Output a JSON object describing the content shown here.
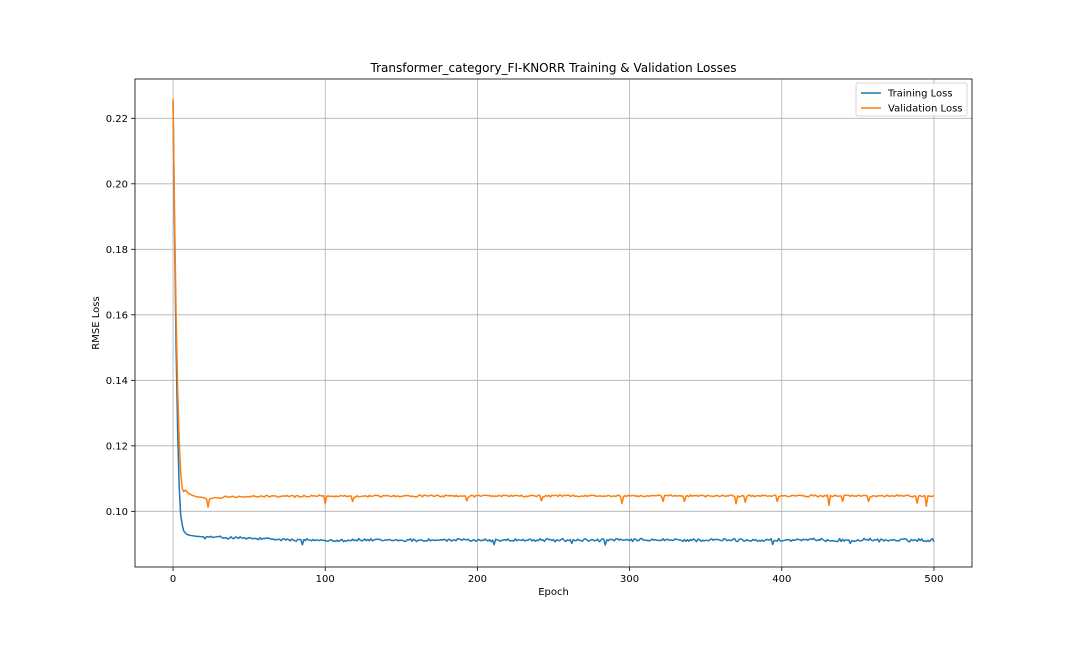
{
  "chart_data": {
    "type": "line",
    "title": "Transformer_category_FI-KNORR Training & Validation Losses",
    "xlabel": "Epoch",
    "ylabel": "RMSE Loss",
    "xlim": [
      -25,
      525
    ],
    "ylim": [
      0.083,
      0.232
    ],
    "x_ticks": [
      0,
      100,
      200,
      300,
      400,
      500
    ],
    "y_ticks": [
      0.1,
      0.12,
      0.14,
      0.16,
      0.18,
      0.2,
      0.22
    ],
    "x_tick_labels": [
      "0",
      "100",
      "200",
      "300",
      "400",
      "500"
    ],
    "y_tick_labels": [
      "0.10",
      "0.12",
      "0.14",
      "0.16",
      "0.18",
      "0.20",
      "0.22"
    ],
    "grid": true,
    "legend_position": "top-right",
    "series": [
      {
        "name": "Training Loss",
        "color": "#1f77b4",
        "early": [
          [
            0,
            0.225
          ],
          [
            1,
            0.185
          ],
          [
            2,
            0.15
          ],
          [
            3,
            0.125
          ],
          [
            4,
            0.108
          ],
          [
            5,
            0.099
          ],
          [
            6,
            0.096
          ],
          [
            7,
            0.094
          ],
          [
            8,
            0.0935
          ],
          [
            9,
            0.093
          ],
          [
            10,
            0.0928
          ],
          [
            12,
            0.0926
          ],
          [
            15,
            0.0924
          ],
          [
            20,
            0.0922
          ]
        ],
        "plateau": {
          "from": 21,
          "to": 500,
          "step": 1,
          "mean": 0.0912,
          "start_mean": 0.0922,
          "noise": 0.0006,
          "dips": [
            [
              85,
              0.0898
            ],
            [
              211,
              0.0898
            ],
            [
              262,
              0.0902
            ],
            [
              284,
              0.0897
            ],
            [
              394,
              0.0899
            ],
            [
              445,
              0.0902
            ]
          ]
        }
      },
      {
        "name": "Validation Loss",
        "color": "#ff7f0e",
        "early": [
          [
            0,
            0.226
          ],
          [
            1,
            0.19
          ],
          [
            2,
            0.16
          ],
          [
            3,
            0.138
          ],
          [
            4,
            0.122
          ],
          [
            5,
            0.112
          ],
          [
            6,
            0.107
          ],
          [
            7,
            0.106
          ],
          [
            8,
            0.1065
          ],
          [
            9,
            0.106
          ],
          [
            10,
            0.1055
          ],
          [
            12,
            0.105
          ],
          [
            15,
            0.1045
          ],
          [
            20,
            0.1042
          ],
          [
            22,
            0.1038
          ],
          [
            23,
            0.1013
          ],
          [
            24,
            0.1038
          ],
          [
            28,
            0.1042
          ],
          [
            32,
            0.104
          ]
        ],
        "plateau": {
          "from": 33,
          "to": 500,
          "step": 1,
          "mean": 0.1047,
          "start_mean": 0.1044,
          "noise": 0.0004,
          "dips": [
            [
              100,
              0.1024
            ],
            [
              118,
              0.103
            ],
            [
              193,
              0.1032
            ],
            [
              242,
              0.1032
            ],
            [
              295,
              0.1024
            ],
            [
              322,
              0.103
            ],
            [
              336,
              0.103
            ],
            [
              370,
              0.1023
            ],
            [
              376,
              0.1028
            ],
            [
              397,
              0.103
            ],
            [
              431,
              0.1018
            ],
            [
              440,
              0.103
            ],
            [
              457,
              0.103
            ],
            [
              489,
              0.1025
            ],
            [
              495,
              0.1016
            ]
          ]
        }
      }
    ]
  }
}
